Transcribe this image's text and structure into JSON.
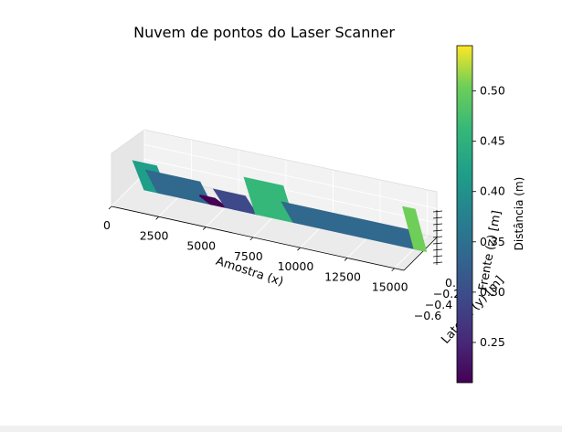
{
  "chart_data": {
    "type": "scatter",
    "subtype": "3d-scatter",
    "title": "Nuvem de pontos do Laser Scanner",
    "xlabel": "Amostra (x)",
    "ylabel": "Lateral (y) [m]",
    "zlabel": "Frente (z) [m]",
    "x_ticks": [
      0,
      2500,
      5000,
      7500,
      10000,
      12500,
      15000
    ],
    "y_ticks": [
      -0.6,
      -0.4,
      -0.2,
      0.0
    ],
    "x_range": [
      0,
      15500
    ],
    "colorbar": {
      "label": "Distância (m)",
      "ticks": [
        0.25,
        0.3,
        0.35,
        0.4,
        0.45,
        0.5
      ],
      "range": [
        0.21,
        0.545
      ],
      "colormap": "viridis"
    },
    "segments": [
      {
        "x_start": 300,
        "x_end": 1500,
        "value": 0.4
      },
      {
        "x_start": 1000,
        "x_end": 3800,
        "value": 0.34
      },
      {
        "x_start": 3800,
        "x_end": 4600,
        "value": 0.22
      },
      {
        "x_start": 4600,
        "x_end": 6200,
        "value": 0.3
      },
      {
        "x_start": 6200,
        "x_end": 8200,
        "value": 0.47
      },
      {
        "x_start": 8200,
        "x_end": 15000,
        "value": 0.32
      },
      {
        "x_start": 14600,
        "x_end": 15200,
        "value": 0.52
      }
    ]
  }
}
